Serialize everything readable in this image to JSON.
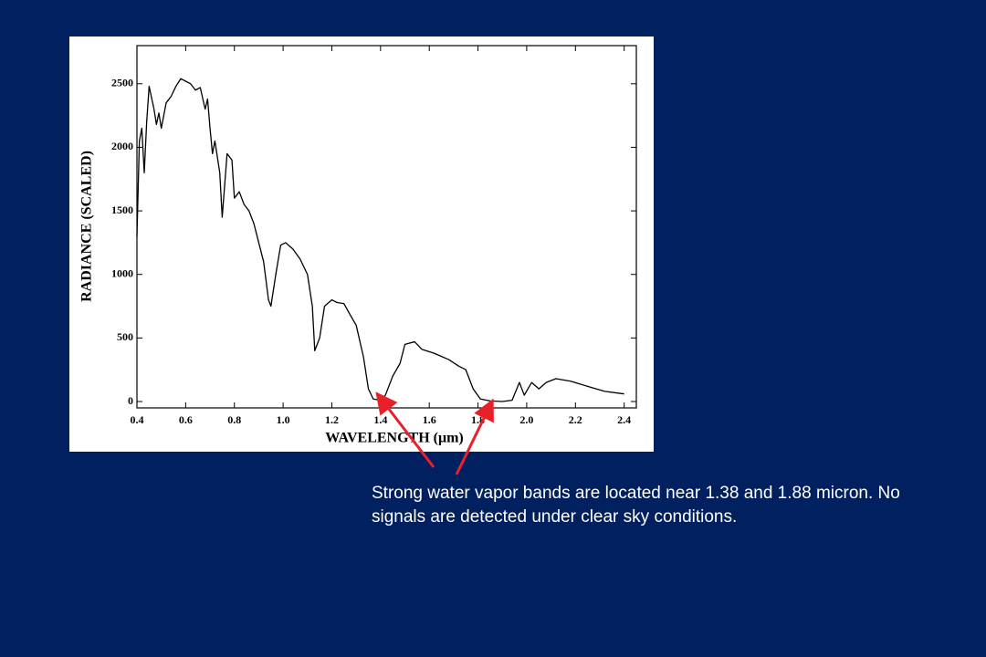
{
  "chart_data": {
    "type": "line",
    "xlabel": "WAVELENGTH (μm)",
    "ylabel": "RADIANCE (SCALED)",
    "color": "#000000",
    "x": [
      0.4,
      0.41,
      0.42,
      0.43,
      0.44,
      0.45,
      0.47,
      0.48,
      0.49,
      0.5,
      0.52,
      0.54,
      0.56,
      0.58,
      0.6,
      0.62,
      0.64,
      0.66,
      0.68,
      0.69,
      0.7,
      0.71,
      0.72,
      0.74,
      0.75,
      0.77,
      0.79,
      0.8,
      0.82,
      0.84,
      0.86,
      0.88,
      0.9,
      0.92,
      0.94,
      0.95,
      0.97,
      0.99,
      1.01,
      1.04,
      1.07,
      1.1,
      1.12,
      1.13,
      1.15,
      1.17,
      1.2,
      1.22,
      1.25,
      1.27,
      1.3,
      1.33,
      1.35,
      1.37,
      1.4,
      1.42,
      1.45,
      1.48,
      1.5,
      1.54,
      1.57,
      1.62,
      1.68,
      1.72,
      1.75,
      1.78,
      1.81,
      1.85,
      1.9,
      1.94,
      1.97,
      1.99,
      2.02,
      2.05,
      2.08,
      2.12,
      2.18,
      2.25,
      2.32,
      2.4
    ],
    "values": [
      1300,
      2050,
      2150,
      1800,
      2200,
      2480,
      2300,
      2180,
      2270,
      2150,
      2350,
      2400,
      2480,
      2540,
      2520,
      2500,
      2450,
      2470,
      2300,
      2380,
      2150,
      1950,
      2050,
      1800,
      1450,
      1950,
      1900,
      1600,
      1650,
      1550,
      1500,
      1400,
      1250,
      1100,
      800,
      750,
      1000,
      1230,
      1250,
      1200,
      1120,
      1000,
      750,
      400,
      500,
      750,
      800,
      780,
      770,
      700,
      600,
      350,
      100,
      20,
      10,
      50,
      200,
      300,
      450,
      470,
      410,
      380,
      330,
      280,
      250,
      100,
      20,
      5,
      0,
      10,
      150,
      50,
      150,
      100,
      150,
      180,
      160,
      120,
      80,
      60
    ],
    "xlim": [
      0.4,
      2.45
    ],
    "ylim": [
      -50,
      2800
    ],
    "xticks": [
      0.4,
      0.6,
      0.8,
      {
        "value": 1,
        "label": "1.0"
      },
      1.2,
      1.4,
      1.6,
      1.8,
      {
        "value": 2,
        "label": "2.0"
      },
      2.2,
      2.4
    ],
    "yticks": [
      0,
      500,
      1000,
      1500,
      2000,
      2500
    ],
    "annotation": "Strong water vapor bands are located near 1.38 and 1.88 micron. No signals are detected under clear sky conditions."
  }
}
